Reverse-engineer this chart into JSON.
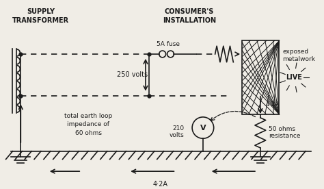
{
  "bg_color": "#f0ede6",
  "line_color": "#1a1a1a",
  "text_color": "#1a1a1a",
  "labels": {
    "supply_transformer": "SUPPLY\nTRANSFORMER",
    "consumers_installation": "CONSUMER'S\nINSTALLATION",
    "fuse_label": "5A fuse",
    "voltage_label": "250 volts",
    "voltage2_label": "210\nvolts",
    "earth_loop": "total earth loop\nimpedance of\n60 ohms",
    "current_label": "4·2A",
    "current2_label": "4·2A",
    "resistance_label": "50 ohms\nresistance",
    "live_label": "LIVE",
    "exposed_label": "exposed\nmetalwork"
  }
}
